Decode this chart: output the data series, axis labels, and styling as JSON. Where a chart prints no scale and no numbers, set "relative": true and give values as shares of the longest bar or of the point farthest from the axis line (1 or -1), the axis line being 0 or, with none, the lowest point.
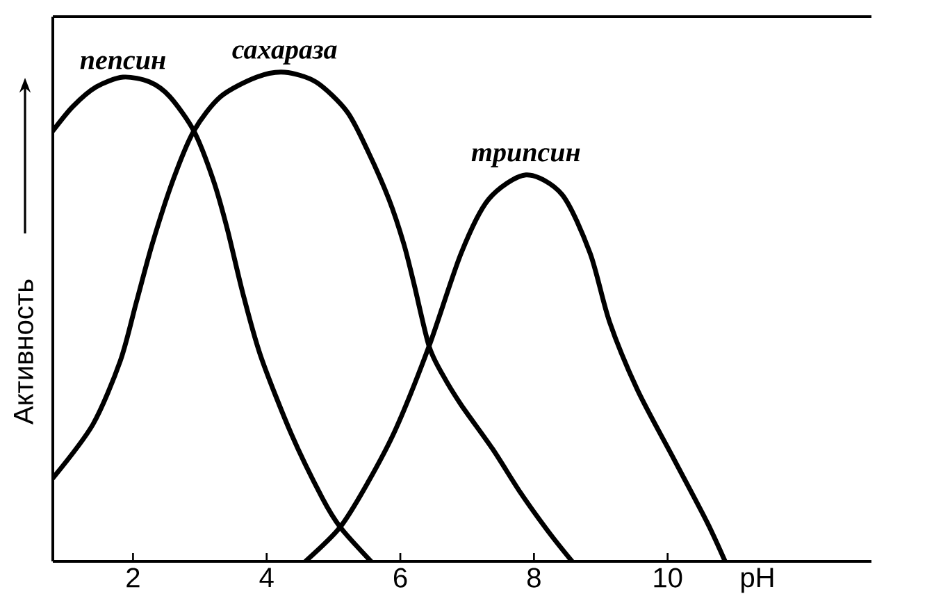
{
  "chart_data": {
    "type": "line",
    "relative": true,
    "xlabel": "pH",
    "ylabel": "Активность",
    "xlim": [
      0.8,
      13.05
    ],
    "xticks": [
      2,
      4,
      6,
      8,
      10
    ],
    "marker": "none",
    "line_style": "solid",
    "series": [
      {
        "name": "пепсин",
        "color": "#000000",
        "x": [
          0.8,
          1.1,
          1.45,
          1.85,
          2.25,
          2.55,
          2.91,
          3.2,
          3.41,
          3.64,
          3.91,
          4.37,
          4.83,
          5.1,
          5.56
        ],
        "values": [
          0.88,
          0.93,
          0.97,
          0.99,
          0.98,
          0.95,
          0.88,
          0.78,
          0.68,
          0.55,
          0.42,
          0.26,
          0.13,
          0.07,
          0
        ]
      },
      {
        "name": "сахараза",
        "color": "#000000",
        "x": [
          0.8,
          1.4,
          1.81,
          2.05,
          2.29,
          2.6,
          2.91,
          3.31,
          3.85,
          4.27,
          4.74,
          5.2,
          5.51,
          5.83,
          6.05,
          6.2,
          6.43,
          6.64,
          6.91,
          7.38,
          7.8,
          8.22,
          8.57
        ],
        "values": [
          0.17,
          0.28,
          0.41,
          0.53,
          0.65,
          0.78,
          0.88,
          0.95,
          0.99,
          1.0,
          0.98,
          0.92,
          0.84,
          0.74,
          0.65,
          0.57,
          0.44,
          0.38,
          0.32,
          0.23,
          0.14,
          0.06,
          0
        ]
      },
      {
        "name": "трипсин",
        "color": "#000000",
        "x": [
          4.58,
          5.1,
          5.51,
          5.93,
          6.43,
          6.91,
          7.32,
          7.88,
          8.42,
          8.84,
          9.13,
          9.55,
          10.09,
          10.59,
          10.86
        ],
        "values": [
          0,
          0.07,
          0.16,
          0.27,
          0.44,
          0.63,
          0.74,
          0.79,
          0.75,
          0.63,
          0.49,
          0.35,
          0.21,
          0.08,
          0
        ]
      }
    ]
  }
}
